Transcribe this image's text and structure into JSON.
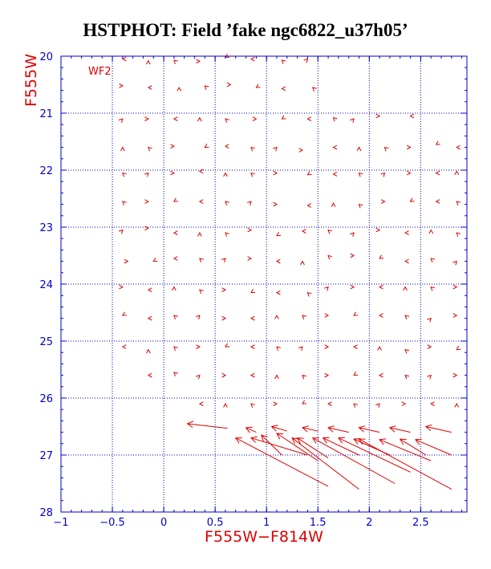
{
  "title": "HSTPHOT: Field ’fake ngc6822_u37h05’",
  "colors": {
    "axis": "#0000cc",
    "grid": "#0000cc",
    "data": "#dd0000",
    "title": "#000000"
  },
  "chart_data": {
    "type": "vector-field",
    "title": "HSTPHOT: Field ’fake ngc6822_u37h05’",
    "xlabel": "F555W−F814W",
    "ylabel": "F555W",
    "panel_label": "WF2",
    "xlim": [
      -1.0,
      2.95
    ],
    "ylim": [
      28,
      20
    ],
    "xticks": [
      -1,
      -0.5,
      0,
      0.5,
      1,
      1.5,
      2,
      2.5
    ],
    "xtick_labels": [
      "−1",
      "−0.5",
      "0",
      "0.5",
      "1",
      "1.5",
      "2",
      "2.5"
    ],
    "yticks": [
      20,
      21,
      22,
      23,
      24,
      25,
      26,
      27,
      28
    ],
    "ytick_labels": [
      "20",
      "21",
      "22",
      "23",
      "24",
      "25",
      "26",
      "27",
      "28"
    ],
    "grid": "dotted",
    "small_vectors": [
      [
        -0.4,
        20.05
      ],
      [
        -0.15,
        20.08
      ],
      [
        0.1,
        20.07
      ],
      [
        0.35,
        20.09
      ],
      [
        0.6,
        20.02
      ],
      [
        0.85,
        20.05
      ],
      [
        1.15,
        20.07
      ],
      [
        1.4,
        20.05
      ],
      [
        -0.4,
        20.52
      ],
      [
        -0.15,
        20.55
      ],
      [
        0.15,
        20.55
      ],
      [
        0.4,
        20.52
      ],
      [
        0.65,
        20.5
      ],
      [
        0.9,
        20.55
      ],
      [
        1.15,
        20.57
      ],
      [
        1.45,
        20.55
      ],
      [
        -0.4,
        21.1
      ],
      [
        -0.15,
        21.1
      ],
      [
        0.1,
        21.1
      ],
      [
        0.35,
        21.08
      ],
      [
        0.6,
        21.1
      ],
      [
        0.9,
        21.1
      ],
      [
        1.15,
        21.1
      ],
      [
        1.4,
        21.1
      ],
      [
        1.65,
        21.08
      ],
      [
        1.85,
        21.1
      ],
      [
        2.1,
        21.05
      ],
      [
        2.4,
        21.05
      ],
      [
        -0.4,
        21.6
      ],
      [
        -0.15,
        21.6
      ],
      [
        0.1,
        21.58
      ],
      [
        0.4,
        21.6
      ],
      [
        0.6,
        21.58
      ],
      [
        0.85,
        21.6
      ],
      [
        1.1,
        21.6
      ],
      [
        1.35,
        21.65
      ],
      [
        1.65,
        21.6
      ],
      [
        1.9,
        21.6
      ],
      [
        2.15,
        21.6
      ],
      [
        2.4,
        21.6
      ],
      [
        2.65,
        21.55
      ],
      [
        2.85,
        21.6
      ],
      [
        -0.4,
        22.05
      ],
      [
        -0.15,
        22.05
      ],
      [
        0.1,
        22.05
      ],
      [
        0.35,
        22.02
      ],
      [
        0.6,
        22.05
      ],
      [
        0.85,
        22.05
      ],
      [
        1.1,
        22.05
      ],
      [
        1.4,
        22.08
      ],
      [
        1.65,
        22.07
      ],
      [
        1.9,
        22.05
      ],
      [
        2.15,
        22.05
      ],
      [
        2.4,
        22.05
      ],
      [
        2.65,
        22.05
      ],
      [
        2.85,
        22.02
      ],
      [
        -0.4,
        22.55
      ],
      [
        -0.15,
        22.55
      ],
      [
        0.1,
        22.55
      ],
      [
        0.35,
        22.55
      ],
      [
        0.6,
        22.55
      ],
      [
        0.85,
        22.55
      ],
      [
        1.1,
        22.6
      ],
      [
        1.4,
        22.62
      ],
      [
        1.65,
        22.58
      ],
      [
        1.9,
        22.6
      ],
      [
        2.15,
        22.55
      ],
      [
        2.4,
        22.55
      ],
      [
        2.65,
        22.55
      ],
      [
        2.85,
        22.55
      ],
      [
        -0.4,
        23.05
      ],
      [
        -0.15,
        23.02
      ],
      [
        0.1,
        23.1
      ],
      [
        0.35,
        23.1
      ],
      [
        0.6,
        23.1
      ],
      [
        0.85,
        23.05
      ],
      [
        1.1,
        23.15
      ],
      [
        1.35,
        23.07
      ],
      [
        1.6,
        23.05
      ],
      [
        1.85,
        23.1
      ],
      [
        2.1,
        23.05
      ],
      [
        2.35,
        23.1
      ],
      [
        2.6,
        23.05
      ],
      [
        2.85,
        23.1
      ],
      [
        -0.35,
        23.6
      ],
      [
        -0.1,
        23.6
      ],
      [
        0.1,
        23.55
      ],
      [
        0.35,
        23.55
      ],
      [
        0.6,
        23.55
      ],
      [
        0.85,
        23.55
      ],
      [
        1.1,
        23.6
      ],
      [
        1.35,
        23.6
      ],
      [
        1.6,
        23.5
      ],
      [
        1.85,
        23.5
      ],
      [
        2.1,
        23.55
      ],
      [
        2.35,
        23.6
      ],
      [
        2.6,
        23.55
      ],
      [
        2.85,
        23.6
      ],
      [
        -0.4,
        24.05
      ],
      [
        -0.15,
        24.1
      ],
      [
        0.1,
        24.05
      ],
      [
        0.35,
        24.1
      ],
      [
        0.6,
        24.1
      ],
      [
        0.85,
        24.15
      ],
      [
        1.1,
        24.15
      ],
      [
        1.4,
        24.15
      ],
      [
        1.6,
        24.05
      ],
      [
        1.85,
        24.05
      ],
      [
        2.1,
        24.05
      ],
      [
        2.35,
        24.05
      ],
      [
        2.6,
        24.05
      ],
      [
        2.85,
        24.05
      ],
      [
        -0.4,
        24.55
      ],
      [
        -0.15,
        24.6
      ],
      [
        0.1,
        24.55
      ],
      [
        0.35,
        24.55
      ],
      [
        0.6,
        24.6
      ],
      [
        0.85,
        24.6
      ],
      [
        1.1,
        24.55
      ],
      [
        1.35,
        24.55
      ],
      [
        1.6,
        24.55
      ],
      [
        1.85,
        24.55
      ],
      [
        2.1,
        24.55
      ],
      [
        2.35,
        24.55
      ],
      [
        2.6,
        24.6
      ],
      [
        2.85,
        24.55
      ],
      [
        -0.4,
        25.1
      ],
      [
        -0.15,
        25.15
      ],
      [
        0.1,
        25.1
      ],
      [
        0.35,
        25.1
      ],
      [
        0.6,
        25.1
      ],
      [
        0.85,
        25.1
      ],
      [
        1.1,
        25.1
      ],
      [
        1.35,
        25.1
      ],
      [
        1.6,
        25.1
      ],
      [
        1.85,
        25.1
      ],
      [
        2.1,
        25.1
      ],
      [
        2.35,
        25.15
      ],
      [
        2.6,
        25.1
      ],
      [
        2.85,
        25.15
      ],
      [
        -0.15,
        25.6
      ],
      [
        0.1,
        25.55
      ],
      [
        0.35,
        25.6
      ],
      [
        0.6,
        25.6
      ],
      [
        0.85,
        25.6
      ],
      [
        1.1,
        25.6
      ],
      [
        1.35,
        25.6
      ],
      [
        1.6,
        25.6
      ],
      [
        1.85,
        25.6
      ],
      [
        2.1,
        25.6
      ],
      [
        2.35,
        25.6
      ],
      [
        2.6,
        25.6
      ],
      [
        2.85,
        25.6
      ],
      [
        0.35,
        26.1
      ],
      [
        0.6,
        26.1
      ],
      [
        0.85,
        26.1
      ],
      [
        1.1,
        26.1
      ],
      [
        1.35,
        26.1
      ],
      [
        1.6,
        26.1
      ],
      [
        1.85,
        26.1
      ],
      [
        2.1,
        26.1
      ],
      [
        2.35,
        26.1
      ],
      [
        2.6,
        26.1
      ],
      [
        2.85,
        26.1
      ]
    ],
    "long_vectors": [
      {
        "from": [
          0.62,
          26.53
        ],
        "to": [
          0.23,
          26.45
        ]
      },
      {
        "from": [
          0.9,
          26.6
        ],
        "to": [
          0.8,
          26.52
        ]
      },
      {
        "from": [
          1.2,
          26.58
        ],
        "to": [
          1.05,
          26.5
        ]
      },
      {
        "from": [
          1.5,
          26.58
        ],
        "to": [
          1.35,
          26.52
        ]
      },
      {
        "from": [
          1.8,
          26.6
        ],
        "to": [
          1.6,
          26.52
        ]
      },
      {
        "from": [
          2.1,
          26.6
        ],
        "to": [
          1.9,
          26.52
        ]
      },
      {
        "from": [
          2.4,
          26.6
        ],
        "to": [
          2.2,
          26.52
        ]
      },
      {
        "from": [
          2.8,
          26.6
        ],
        "to": [
          2.55,
          26.5
        ]
      },
      {
        "from": [
          1.6,
          27.55
        ],
        "to": [
          0.7,
          26.7
        ]
      },
      {
        "from": [
          1.4,
          27.0
        ],
        "to": [
          0.85,
          26.7
        ]
      },
      {
        "from": [
          1.15,
          27.0
        ],
        "to": [
          0.95,
          26.65
        ]
      },
      {
        "from": [
          1.5,
          27.1
        ],
        "to": [
          1.1,
          26.62
        ]
      },
      {
        "from": [
          1.9,
          27.6
        ],
        "to": [
          1.25,
          26.7
        ]
      },
      {
        "from": [
          1.6,
          27.05
        ],
        "to": [
          1.3,
          26.7
        ]
      },
      {
        "from": [
          2.25,
          27.5
        ],
        "to": [
          1.45,
          26.7
        ]
      },
      {
        "from": [
          1.9,
          27.0
        ],
        "to": [
          1.55,
          26.7
        ]
      },
      {
        "from": [
          2.4,
          27.3
        ],
        "to": [
          1.7,
          26.7
        ]
      },
      {
        "from": [
          2.2,
          27.0
        ],
        "to": [
          1.85,
          26.72
        ]
      },
      {
        "from": [
          2.8,
          27.6
        ],
        "to": [
          1.9,
          26.72
        ]
      },
      {
        "from": [
          2.6,
          27.1
        ],
        "to": [
          2.1,
          26.73
        ]
      },
      {
        "from": [
          2.55,
          27.0
        ],
        "to": [
          2.3,
          26.72
        ]
      },
      {
        "from": [
          2.8,
          27.0
        ],
        "to": [
          2.45,
          26.73
        ]
      }
    ]
  }
}
